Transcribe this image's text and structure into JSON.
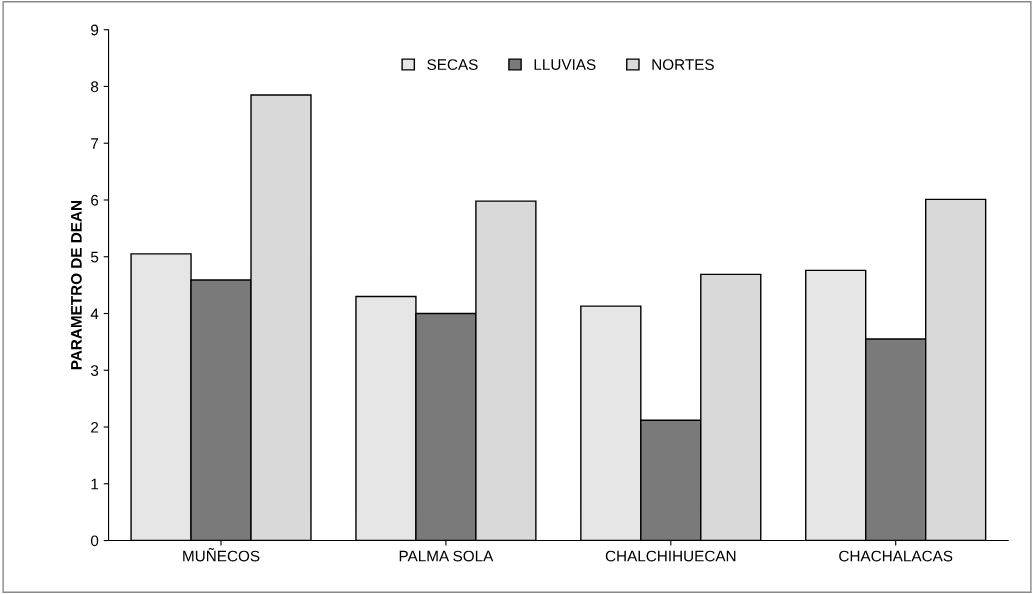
{
  "chart_data": {
    "type": "bar",
    "ylabel": "PARAMETRO DE DEAN",
    "categories": [
      "MUÑECOS",
      "PALMA SOLA",
      "CHALCHIHUECAN",
      "CHACHALACAS"
    ],
    "series": [
      {
        "name": "SECAS",
        "color": "#e6e6e6",
        "values": [
          5.05,
          4.3,
          4.13,
          4.76
        ]
      },
      {
        "name": "LLUVIAS",
        "color": "#7a7a7a",
        "values": [
          4.59,
          4.0,
          2.12,
          3.55
        ]
      },
      {
        "name": "NORTES",
        "color": "#d9d9d9",
        "values": [
          7.85,
          5.98,
          4.69,
          6.01
        ]
      }
    ],
    "ylim": [
      0,
      9
    ],
    "yticks": [
      0,
      1,
      2,
      3,
      4,
      5,
      6,
      7,
      8,
      9
    ],
    "grid": false,
    "legend": "top"
  }
}
